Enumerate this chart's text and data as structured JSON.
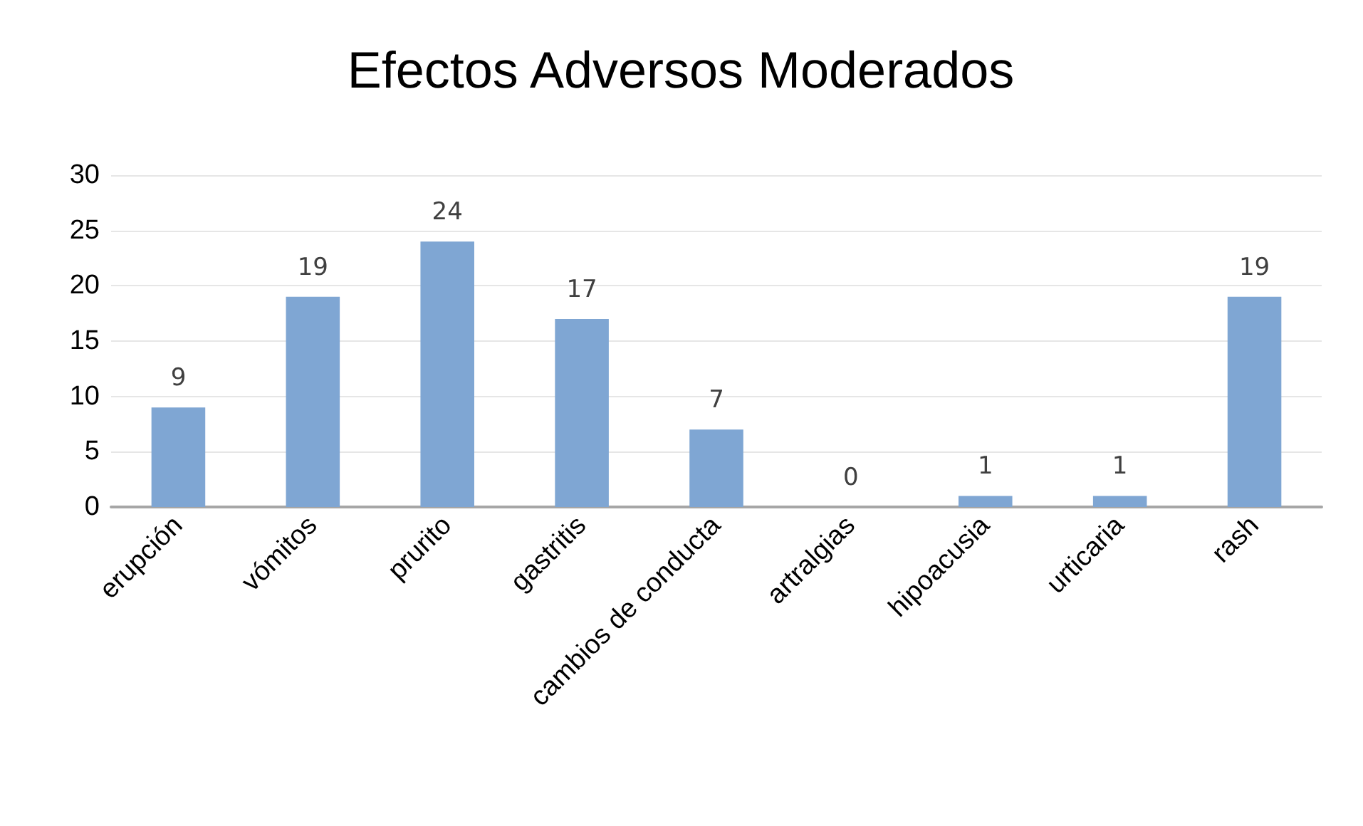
{
  "chart_data": {
    "type": "bar",
    "title": "Efectos Adversos Moderados",
    "categories": [
      "erupción",
      "vómitos",
      "prurito",
      "gastritis",
      "cambios de conducta",
      "artralgias",
      "hipoacusia",
      "urticaria",
      "rash"
    ],
    "values": [
      9,
      19,
      24,
      17,
      7,
      0,
      1,
      1,
      19
    ],
    "color": "#7fa6d3",
    "ylim": [
      0,
      30
    ],
    "yticks": [
      0,
      5,
      10,
      15,
      20,
      25,
      30
    ],
    "grid": "y",
    "data_labels": true
  }
}
